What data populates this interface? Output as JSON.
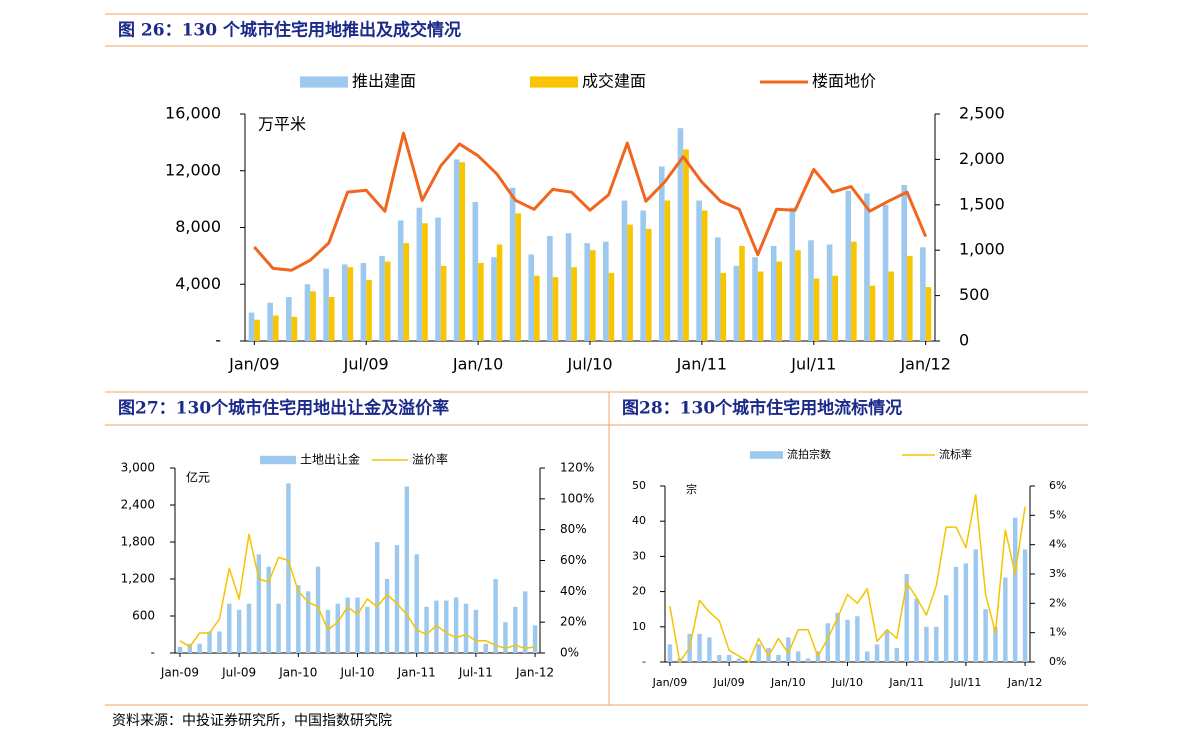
{
  "chart_data": [
    {
      "type": "combo",
      "title": "图 26：130 个城市住宅用地推出及成交情况",
      "unit_label": "万平米",
      "categories": [
        "Jan/09",
        null,
        null,
        null,
        null,
        null,
        "Jul/09",
        null,
        null,
        null,
        null,
        null,
        "Jan/10",
        null,
        null,
        null,
        null,
        null,
        "Jul/10",
        null,
        null,
        null,
        null,
        null,
        "Jan/11",
        null,
        null,
        null,
        null,
        null,
        "Jul/11",
        null,
        null,
        null,
        null,
        null,
        "Jan/12"
      ],
      "series": [
        {
          "name": "推出建面",
          "type": "bar",
          "color": "#9dc9ef",
          "values": [
            2000,
            2700,
            3100,
            4000,
            5100,
            5400,
            5500,
            6000,
            8500,
            9400,
            8700,
            12800,
            9800,
            5900,
            10800,
            6100,
            7400,
            7600,
            6900,
            7000,
            9900,
            9200,
            12300,
            15000,
            9900,
            7300,
            5300,
            5900,
            6700,
            9400,
            7100,
            6800,
            10600,
            10400,
            9600,
            11000,
            6600
          ]
        },
        {
          "name": "成交建面",
          "type": "bar",
          "color": "#f7c600",
          "values": [
            1500,
            1800,
            1700,
            3500,
            3100,
            5200,
            4300,
            5600,
            6900,
            8300,
            5300,
            12600,
            5500,
            6800,
            9000,
            4600,
            4500,
            5200,
            6400,
            4800,
            8200,
            7900,
            9900,
            13500,
            9200,
            4800,
            6700,
            4900,
            5600,
            6400,
            4400,
            4600,
            7000,
            3900,
            4900,
            6000,
            3800
          ]
        },
        {
          "name": "楼面地价",
          "type": "line",
          "axis": "y2",
          "color": "#f0661e",
          "values": [
            1035,
            800,
            780,
            890,
            1080,
            1640,
            1660,
            1430,
            2290,
            1550,
            1930,
            2170,
            2040,
            1840,
            1550,
            1450,
            1670,
            1640,
            1440,
            1610,
            2180,
            1540,
            1750,
            2030,
            1750,
            1540,
            1450,
            950,
            1450,
            1440,
            1890,
            1640,
            1700,
            1430,
            1540,
            1640,
            1150
          ]
        }
      ],
      "ylim": [
        0,
        16000
      ],
      "yticks": [
        {
          "value": 0,
          "label": "-"
        },
        {
          "value": 4000,
          "label": "4,000"
        },
        {
          "value": 8000,
          "label": "8,000"
        },
        {
          "value": 12000,
          "label": "12,000"
        },
        {
          "value": 16000,
          "label": "16,000"
        }
      ],
      "y2lim": [
        0,
        2500
      ],
      "y2ticks": [
        0,
        500,
        {
          "value": 1000,
          "label": "1,000"
        },
        {
          "value": 1500,
          "label": "1,500"
        },
        {
          "value": 2000,
          "label": "2,000"
        },
        {
          "value": 2500,
          "label": "2,500"
        }
      ]
    },
    {
      "type": "combo",
      "title": "图27：130个城市住宅用地出让金及溢价率",
      "unit_label": "亿元",
      "categories": [
        "Jan-09",
        null,
        null,
        null,
        null,
        null,
        "Jul-09",
        null,
        null,
        null,
        null,
        null,
        "Jan-10",
        null,
        null,
        null,
        null,
        null,
        "Jul-10",
        null,
        null,
        null,
        null,
        null,
        "Jan-11",
        null,
        null,
        null,
        null,
        null,
        "Jul-11",
        null,
        null,
        null,
        null,
        null,
        "Jan-12"
      ],
      "series": [
        {
          "name": "土地出让金",
          "type": "bar",
          "color": "#9dc9ef",
          "values": [
            100,
            150,
            150,
            350,
            350,
            800,
            700,
            800,
            1600,
            1400,
            800,
            2750,
            1100,
            1000,
            1400,
            700,
            800,
            900,
            900,
            750,
            1800,
            1200,
            1750,
            2700,
            1600,
            750,
            850,
            850,
            900,
            800,
            700,
            150,
            1200,
            500,
            750,
            1000,
            450
          ]
        },
        {
          "name": "溢价率",
          "type": "line",
          "axis": "y2",
          "color": "#f5c400",
          "values": [
            8,
            4,
            13,
            13,
            22,
            55,
            35,
            77,
            48,
            46,
            62,
            60,
            40,
            33,
            30,
            15,
            20,
            30,
            25,
            35,
            30,
            38,
            32,
            25,
            15,
            12,
            18,
            13,
            10,
            12,
            8,
            8,
            5,
            3,
            5,
            3,
            4
          ]
        }
      ],
      "ylim": [
        0,
        3000
      ],
      "yticks": [
        {
          "value": 0,
          "label": "-"
        },
        600,
        {
          "value": 1200,
          "label": "1,200"
        },
        {
          "value": 1800,
          "label": "1,800"
        },
        {
          "value": 2400,
          "label": "2,400"
        },
        {
          "value": 3000,
          "label": "3,000"
        }
      ],
      "y2lim": [
        0,
        120
      ],
      "y2ticks": [
        {
          "value": 0,
          "label": "0%"
        },
        {
          "value": 20,
          "label": "20%"
        },
        {
          "value": 40,
          "label": "40%"
        },
        {
          "value": 60,
          "label": "60%"
        },
        {
          "value": 80,
          "label": "80%"
        },
        {
          "value": 100,
          "label": "100%"
        },
        {
          "value": 120,
          "label": "120%"
        }
      ]
    },
    {
      "type": "combo",
      "title": "图28：130个城市住宅用地流标情况",
      "unit_label": "宗",
      "categories": [
        "Jan/09",
        null,
        null,
        null,
        null,
        null,
        "Jul/09",
        null,
        null,
        null,
        null,
        null,
        "Jan/10",
        null,
        null,
        null,
        null,
        null,
        "Jul/10",
        null,
        null,
        null,
        null,
        null,
        "Jan/11",
        null,
        null,
        null,
        null,
        null,
        "Jul/11",
        null,
        null,
        null,
        null,
        null,
        "Jan/12"
      ],
      "series": [
        {
          "name": "流拍宗数",
          "type": "bar",
          "color": "#9dc9ef",
          "values": [
            5,
            1,
            8,
            8,
            7,
            2,
            2,
            1,
            0,
            5,
            4,
            2,
            7,
            3,
            1,
            3,
            11,
            14,
            12,
            13,
            3,
            5,
            9,
            4,
            25,
            18,
            10,
            10,
            19,
            27,
            28,
            32,
            15,
            10,
            24,
            41,
            32
          ]
        },
        {
          "name": "流标率",
          "type": "line",
          "axis": "y2",
          "color": "#f5c400",
          "values": [
            1.9,
            0,
            0.5,
            2.1,
            1.7,
            1.4,
            0.4,
            0.2,
            0,
            0.8,
            0.2,
            0.8,
            0.3,
            1.1,
            1.1,
            0.2,
            0.8,
            1.5,
            2.3,
            2.0,
            2.5,
            0.7,
            1.1,
            0.8,
            2.7,
            2.2,
            1.6,
            2.6,
            4.6,
            4.6,
            3.9,
            5.7,
            2.3,
            1.0,
            4.5,
            3.0,
            5.3
          ]
        }
      ],
      "ylim": [
        0,
        50
      ],
      "yticks": [
        {
          "value": 0,
          "label": "-"
        },
        10,
        20,
        30,
        40,
        50
      ],
      "y2lim": [
        0,
        6
      ],
      "y2ticks": [
        {
          "value": 0,
          "label": "0%"
        },
        {
          "value": 1,
          "label": "1%"
        },
        {
          "value": 2,
          "label": "2%"
        },
        {
          "value": 3,
          "label": "3%"
        },
        {
          "value": 4,
          "label": "4%"
        },
        {
          "value": 5,
          "label": "5%"
        },
        {
          "value": 6,
          "label": "6%"
        }
      ]
    }
  ],
  "source": "资料来源：中投证券研究所，中国指数研究院"
}
